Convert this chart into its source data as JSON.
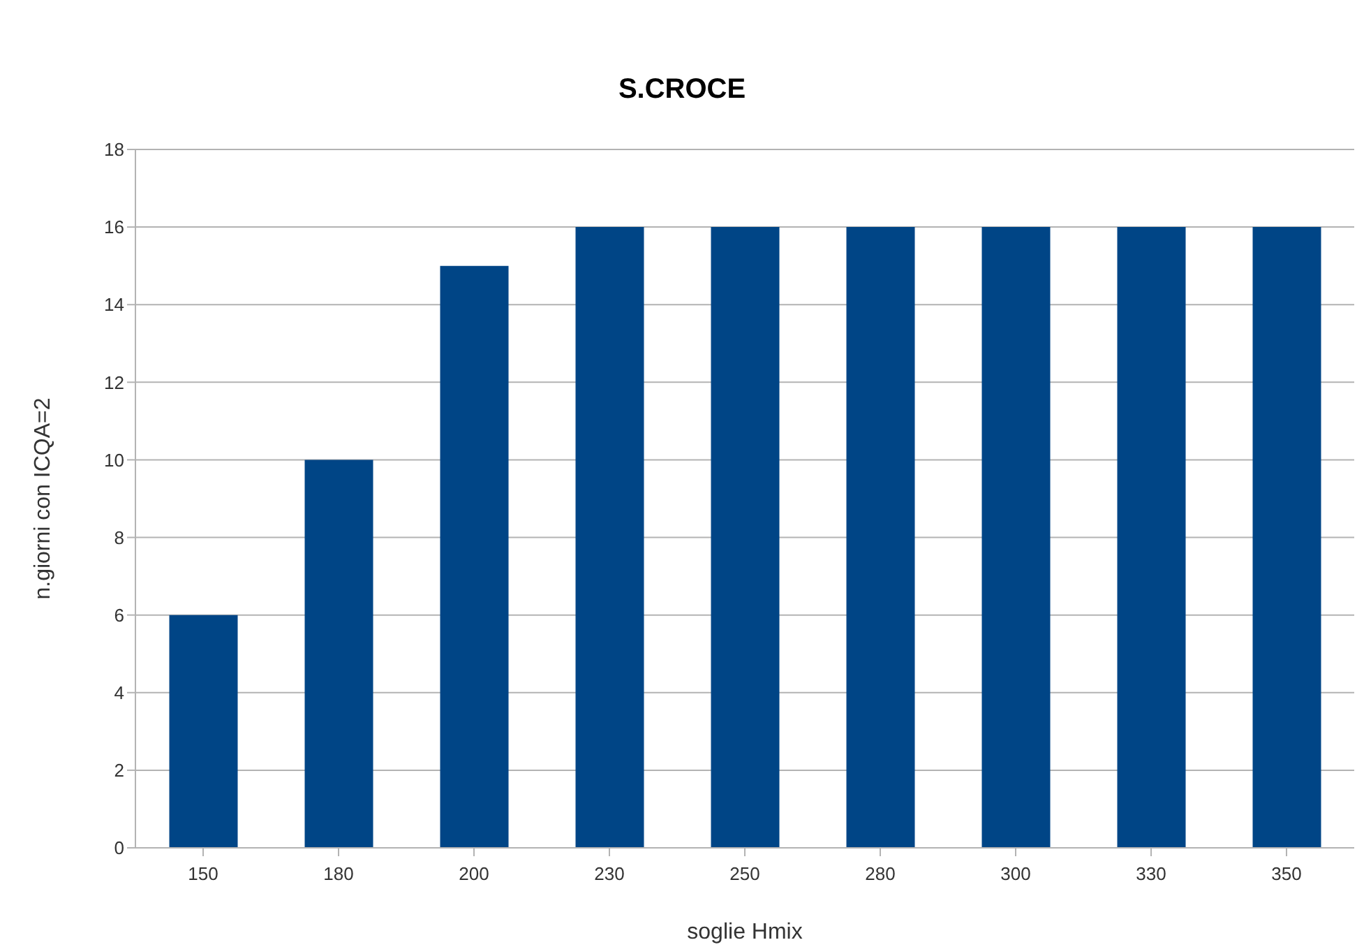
{
  "chart_data": {
    "type": "bar",
    "title": "S.CROCE",
    "xlabel": "soglie Hmix",
    "ylabel": "n.giorni con ICQA=2",
    "categories": [
      "150",
      "180",
      "200",
      "230",
      "250",
      "280",
      "300",
      "330",
      "350"
    ],
    "values": [
      6,
      10,
      15,
      16,
      16,
      16,
      16,
      16,
      16
    ],
    "color": "#004586",
    "ylim": [
      0,
      18
    ],
    "yticks": [
      0,
      2,
      4,
      6,
      8,
      10,
      12,
      14,
      16,
      18
    ],
    "grid": "y"
  }
}
